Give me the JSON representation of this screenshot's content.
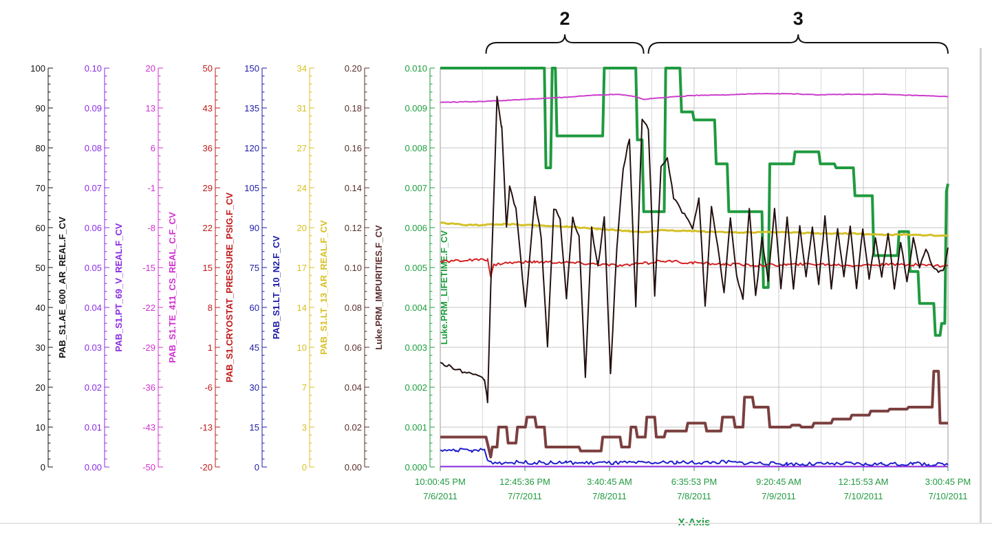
{
  "chart_data": {
    "type": "line",
    "xlabel": "X-Axis",
    "x_tick_labels": [
      [
        "10:00:45 PM",
        "7/6/2011"
      ],
      [
        "12:45:36 PM",
        "7/7/2011"
      ],
      [
        "3:40:45 AM",
        "7/8/2011"
      ],
      [
        "6:35:53 PM",
        "7/8/2011"
      ],
      [
        "9:20:45 AM",
        "7/9/2011"
      ],
      [
        "12:15:53 AM",
        "7/10/2011"
      ],
      [
        "3:00:45 PM",
        "7/10/2011"
      ]
    ],
    "x_range_hours": [
      0,
      161
    ],
    "annotations": [
      {
        "label": "2",
        "x_start_hours": 14.5,
        "x_end_hours": 64.5
      },
      {
        "label": "3",
        "x_start_hours": 66.0,
        "x_end_hours": 161.0
      }
    ],
    "grid": true,
    "axes": [
      {
        "name": "PAB_S1.AE_600_AR_REAL.F_CV",
        "color": "#111111",
        "ticks": [
          "0",
          "10",
          "20",
          "30",
          "40",
          "50",
          "60",
          "70",
          "80",
          "90",
          "100"
        ],
        "ylim": [
          0,
          100
        ]
      },
      {
        "name": "PAB_S1.PT_69_V_REAL.F_CV",
        "color": "#8a2be2",
        "ticks": [
          "0.00",
          "0.01",
          "0.02",
          "0.03",
          "0.04",
          "0.05",
          "0.06",
          "0.07",
          "0.08",
          "0.09",
          "0.10"
        ],
        "ylim": [
          0,
          0.1
        ]
      },
      {
        "name": "PAB_S1.TE_411_CS_REAL_C.F_CV",
        "color": "#d12fd1",
        "ticks": [
          "-50",
          "-43",
          "-36",
          "-29",
          "-22",
          "-15",
          "-8",
          "-1",
          "6",
          "13",
          "20"
        ],
        "ylim": [
          -50,
          20
        ]
      },
      {
        "name": "PAB_S1.CRYOSTAT_PRESSURE_PSIG.F_CV",
        "color": "#c01818",
        "ticks": [
          "-20",
          "-13",
          "-6",
          "1",
          "8",
          "15",
          "22",
          "29",
          "36",
          "43",
          "50"
        ],
        "ylim": [
          -20,
          50
        ]
      },
      {
        "name": "PAB_S1.LT_10_N2.F_CV",
        "color": "#1a1aa8",
        "ticks": [
          "0",
          "15",
          "30",
          "45",
          "60",
          "75",
          "90",
          "105",
          "120",
          "135",
          "150"
        ],
        "ylim": [
          0,
          150
        ]
      },
      {
        "name": "PAB_S1.LT_13_AR_REAL.F_CV",
        "color": "#d8c020",
        "ticks": [
          "0",
          "3",
          "7",
          "10",
          "14",
          "17",
          "20",
          "24",
          "27",
          "31",
          "34"
        ],
        "ylim": [
          0,
          34
        ]
      },
      {
        "name": "Luke.PRM_IMPURITIES.F_CV",
        "color": "#5a2e2e",
        "ticks": [
          "0.00",
          "0.02",
          "0.04",
          "0.06",
          "0.08",
          "0.10",
          "0.12",
          "0.14",
          "0.16",
          "0.18",
          "0.20"
        ],
        "ylim": [
          0,
          0.2
        ]
      },
      {
        "name": "Luke.PRM_LIFETIME.F_CV",
        "color": "#1a9e3a",
        "ticks": [
          "0.000",
          "0.001",
          "0.002",
          "0.003",
          "0.004",
          "0.005",
          "0.006",
          "0.007",
          "0.008",
          "0.009",
          "0.010"
        ],
        "ylim": [
          0,
          0.01
        ]
      }
    ],
    "series": [
      {
        "axis": 7,
        "color": "#1f9a3f",
        "x": [
          0,
          0.5,
          33,
          33.5,
          35,
          35.5,
          36.5,
          37,
          51.5,
          52,
          62,
          62.5,
          64,
          64.5,
          71,
          71.5,
          76,
          76.5,
          80,
          80.5,
          87,
          87.5,
          91,
          91.5,
          102,
          102.5,
          104,
          104.5,
          112,
          112.5,
          120,
          120.5,
          125,
          125.5,
          131,
          131.5,
          137,
          137.5,
          145,
          145.5,
          148.5,
          149,
          151.5,
          152,
          156.5,
          157,
          158.5,
          159,
          160,
          160.5,
          161
        ],
        "y": [
          0.01,
          0.01,
          0.01,
          0.0075,
          0.0075,
          0.01,
          0.01,
          0.0083,
          0.0083,
          0.01,
          0.01,
          0.0082,
          0.0082,
          0.0064,
          0.0064,
          0.01,
          0.01,
          0.0089,
          0.0089,
          0.0087,
          0.0087,
          0.0076,
          0.0076,
          0.0064,
          0.0064,
          0.0045,
          0.0045,
          0.0076,
          0.0076,
          0.0079,
          0.0079,
          0.0076,
          0.0076,
          0.0075,
          0.0075,
          0.0068,
          0.0068,
          0.0053,
          0.0053,
          0.0059,
          0.0059,
          0.0049,
          0.0049,
          0.0041,
          0.0041,
          0.0033,
          0.0033,
          0.0036,
          0.0036,
          0.0069,
          0.0071
        ]
      },
      {
        "axis": 2,
        "color": "#cc3ccc",
        "x": [
          0,
          10,
          20,
          30,
          40,
          50,
          57,
          62,
          64.5,
          70,
          80,
          90,
          100,
          110,
          120,
          130,
          140,
          150,
          161
        ],
        "y": [
          14.0,
          14.1,
          14.3,
          14.6,
          14.9,
          15.3,
          15.4,
          15.0,
          14.5,
          14.8,
          15.2,
          15.3,
          15.5,
          15.5,
          15.3,
          15.4,
          15.4,
          15.2,
          15.0
        ]
      },
      {
        "axis": 5,
        "color": "#d4c028",
        "x": [
          0,
          10,
          20,
          30,
          40,
          50,
          60,
          64,
          70,
          80,
          90,
          100,
          110,
          120,
          130,
          140,
          150,
          161
        ],
        "y": [
          20.8,
          20.6,
          20.7,
          20.6,
          20.5,
          20.3,
          20.1,
          20.0,
          20.2,
          20.1,
          20.0,
          20.0,
          20.0,
          19.9,
          19.9,
          19.8,
          19.8,
          19.7
        ]
      },
      {
        "axis": 3,
        "color": "#d42020",
        "x": [
          0,
          8,
          15,
          16,
          17,
          20,
          30,
          40,
          50,
          58,
          62,
          66,
          70,
          80,
          90,
          100,
          110,
          120,
          130,
          140,
          150,
          161
        ],
        "y": [
          16.0,
          16.3,
          16.3,
          13.5,
          15.5,
          15.8,
          16.0,
          15.9,
          15.6,
          15.3,
          15.6,
          15.8,
          16.2,
          15.8,
          15.6,
          15.4,
          15.5,
          15.6,
          15.4,
          15.5,
          15.5,
          15.3
        ]
      },
      {
        "axis": 6,
        "color": "#241010",
        "x": [
          0,
          14,
          15,
          16,
          18,
          19.5,
          21,
          22,
          24,
          27,
          30,
          32,
          34,
          36,
          38,
          40,
          42,
          44,
          46,
          48,
          50,
          52,
          54,
          56,
          58,
          60,
          62,
          64,
          66,
          68,
          70,
          72,
          74,
          76,
          78,
          80,
          82,
          84,
          86,
          88,
          90,
          92,
          94,
          96,
          98,
          100,
          102,
          104,
          106,
          108,
          110,
          112,
          114,
          116,
          118,
          120,
          122,
          124,
          126,
          128,
          130,
          132,
          134,
          136,
          138,
          140,
          142,
          144,
          146,
          148,
          150,
          152,
          154,
          156,
          158,
          160,
          161
        ],
        "y": [
          0.052,
          0.044,
          0.033,
          0.09,
          0.185,
          0.17,
          0.12,
          0.14,
          0.13,
          0.08,
          0.135,
          0.115,
          0.06,
          0.13,
          0.125,
          0.085,
          0.125,
          0.115,
          0.045,
          0.12,
          0.1,
          0.125,
          0.047,
          0.11,
          0.15,
          0.165,
          0.08,
          0.175,
          0.17,
          0.085,
          0.15,
          0.155,
          0.135,
          0.13,
          0.125,
          0.12,
          0.135,
          0.08,
          0.13,
          0.11,
          0.088,
          0.125,
          0.095,
          0.085,
          0.13,
          0.085,
          0.115,
          0.093,
          0.13,
          0.09,
          0.125,
          0.09,
          0.12,
          0.095,
          0.12,
          0.092,
          0.125,
          0.09,
          0.12,
          0.095,
          0.12,
          0.09,
          0.12,
          0.095,
          0.115,
          0.095,
          0.118,
          0.09,
          0.113,
          0.092,
          0.115,
          0.1,
          0.11,
          0.1,
          0.098,
          0.1,
          0.11
        ]
      },
      {
        "axis": 6,
        "color": "#7b3f3f",
        "x": [
          0,
          14.5,
          16,
          16.5,
          18,
          18.5,
          21,
          21.5,
          24,
          24.5,
          27,
          27.5,
          30,
          30.5,
          33,
          33.5,
          44,
          44.5,
          47,
          47.5,
          51,
          51.5,
          57,
          57.5,
          60,
          60.5,
          62,
          62.5,
          65,
          65.5,
          68,
          68.5,
          71,
          71.5,
          78,
          78.5,
          84,
          84.5,
          89,
          89.5,
          93,
          93.5,
          96,
          96.5,
          99,
          99.5,
          104,
          104.5,
          111,
          111.5,
          114,
          114.5,
          118,
          118.5,
          124,
          124.5,
          130,
          130.5,
          136,
          136.5,
          142,
          142.5,
          148,
          148.5,
          156,
          156.5,
          158,
          158.5,
          161
        ],
        "y": [
          0.015,
          0.015,
          0.005,
          0.01,
          0.01,
          0.02,
          0.02,
          0.012,
          0.012,
          0.02,
          0.02,
          0.025,
          0.025,
          0.02,
          0.02,
          0.01,
          0.01,
          0.008,
          0.008,
          0.008,
          0.008,
          0.015,
          0.015,
          0.01,
          0.01,
          0.02,
          0.02,
          0.015,
          0.015,
          0.025,
          0.025,
          0.015,
          0.015,
          0.018,
          0.018,
          0.022,
          0.022,
          0.018,
          0.018,
          0.025,
          0.025,
          0.02,
          0.02,
          0.035,
          0.035,
          0.03,
          0.03,
          0.02,
          0.02,
          0.021,
          0.021,
          0.02,
          0.02,
          0.022,
          0.022,
          0.024,
          0.024,
          0.026,
          0.026,
          0.028,
          0.028,
          0.029,
          0.029,
          0.03,
          0.03,
          0.048,
          0.048,
          0.022,
          0.022
        ]
      },
      {
        "axis": 4,
        "color": "#1e1ecc",
        "x": [
          0,
          5,
          10,
          14,
          15,
          16,
          20,
          25,
          30,
          35,
          40,
          45,
          50,
          55,
          60,
          64,
          70,
          75,
          80,
          85,
          90,
          95,
          100,
          105,
          110,
          115,
          120,
          125,
          130,
          135,
          140,
          145,
          150,
          155,
          161
        ],
        "y": [
          6.0,
          6.5,
          6.0,
          6.5,
          2.5,
          1.8,
          1.6,
          1.8,
          1.7,
          1.6,
          1.7,
          1.5,
          1.6,
          1.5,
          1.6,
          1.5,
          1.6,
          1.8,
          1.7,
          1.7,
          1.9,
          1.6,
          1.5,
          1.3,
          1.2,
          1.0,
          1.2,
          1.1,
          1.3,
          1.0,
          1.2,
          1.0,
          1.3,
          1.0,
          0.8
        ]
      },
      {
        "axis": 1,
        "color": "#8a2be2",
        "x": [
          0,
          161
        ],
        "y": [
          0.0001,
          0.0001
        ]
      }
    ]
  }
}
